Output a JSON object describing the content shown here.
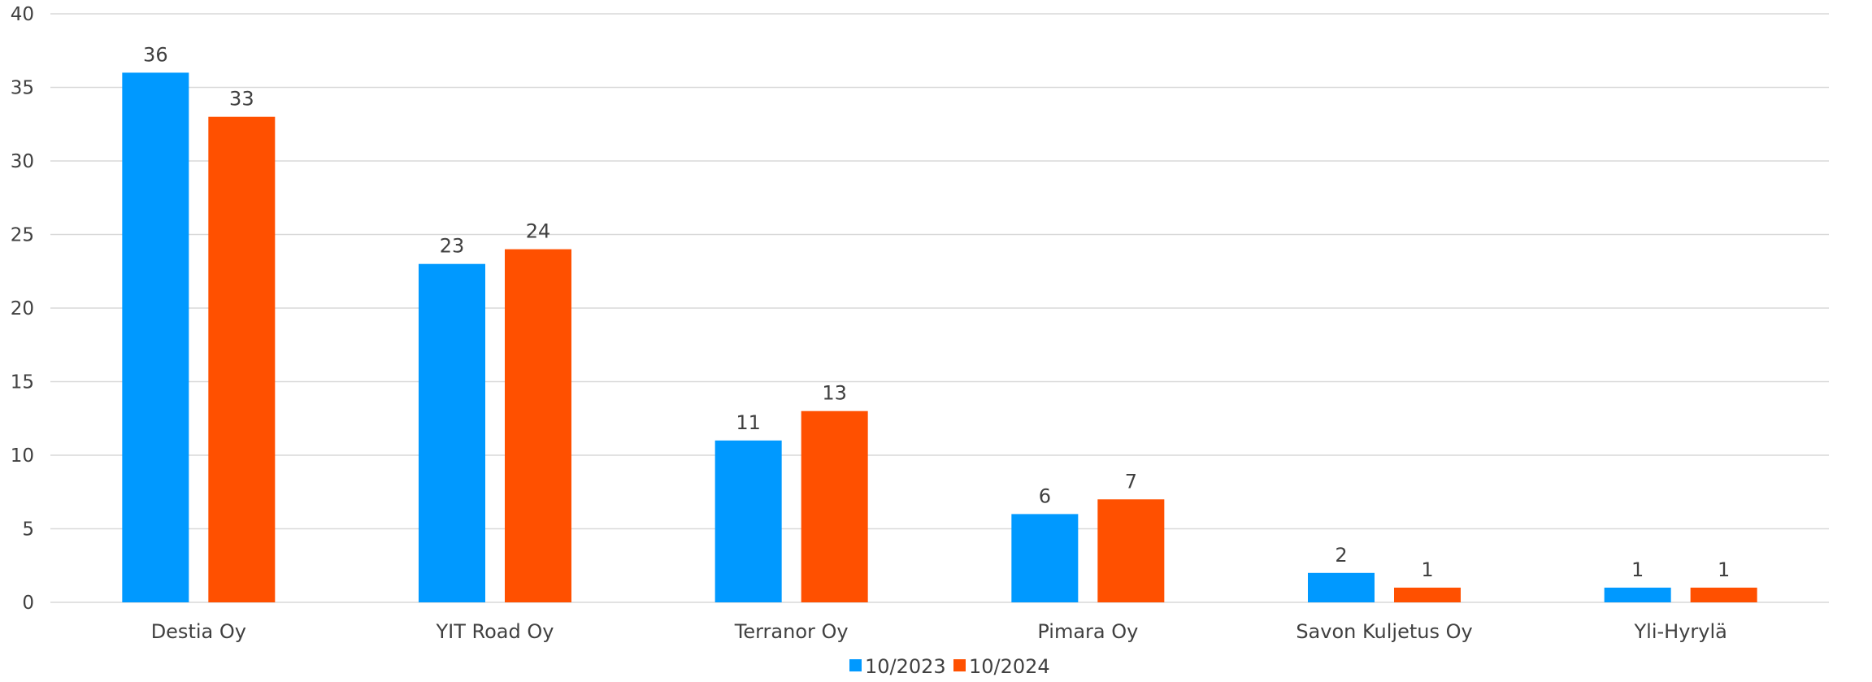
{
  "chart_data": {
    "type": "bar",
    "categories": [
      "Destia Oy",
      "YIT Road Oy",
      "Terranor Oy",
      "Pimara Oy",
      "Savon Kuljetus Oy",
      "Yli-Hyrylä"
    ],
    "series": [
      {
        "name": "10/2023",
        "values": [
          36,
          23,
          11,
          6,
          2,
          1
        ],
        "color": "#0099FF"
      },
      {
        "name": "10/2024",
        "values": [
          33,
          24,
          13,
          7,
          1,
          1
        ],
        "color": "#FF5000"
      }
    ],
    "ylim": [
      0,
      40
    ],
    "yticks": [
      0,
      5,
      10,
      15,
      20,
      25,
      30,
      35,
      40
    ],
    "grid": true,
    "legend_position": "bottom",
    "data_labels": true,
    "title": "",
    "xlabel": "",
    "ylabel": ""
  }
}
